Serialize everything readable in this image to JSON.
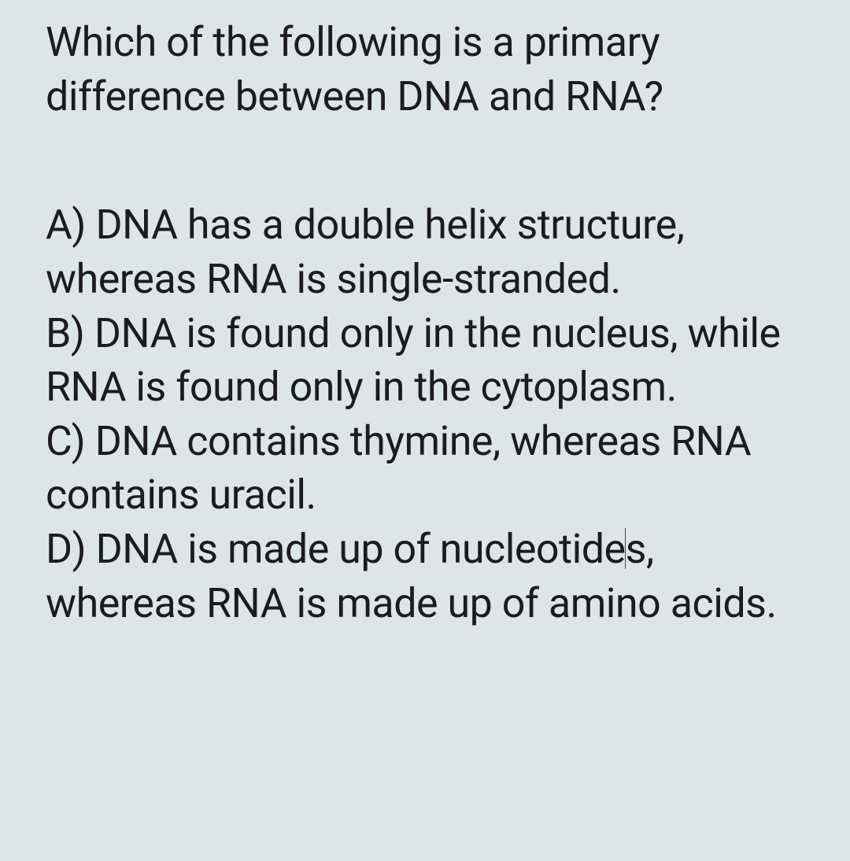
{
  "background_color": "#dce6ea",
  "text_color": "#1a1c1e",
  "font_size": 52,
  "line_height": 1.32,
  "question": "Which of the following is a primary difference between DNA and RNA?",
  "options": [
    {
      "letter": "A",
      "text": "DNA has a double helix structure, whereas RNA is single-stranded."
    },
    {
      "letter": "B",
      "text": "DNA is found only in the nucleus, while RNA is found only in the cytoplasm."
    },
    {
      "letter": "C",
      "text": "DNA contains thymine, whereas RNA contains uracil."
    },
    {
      "letter": "D",
      "text": "DNA is made up of nucleotides, whereas RNA is made up of amino acids."
    }
  ],
  "cursor_visible": true,
  "cursor_after_option_index": 3,
  "cursor_after_char_offset_from_end_of_word": "nucleotides_between_e_and_s"
}
